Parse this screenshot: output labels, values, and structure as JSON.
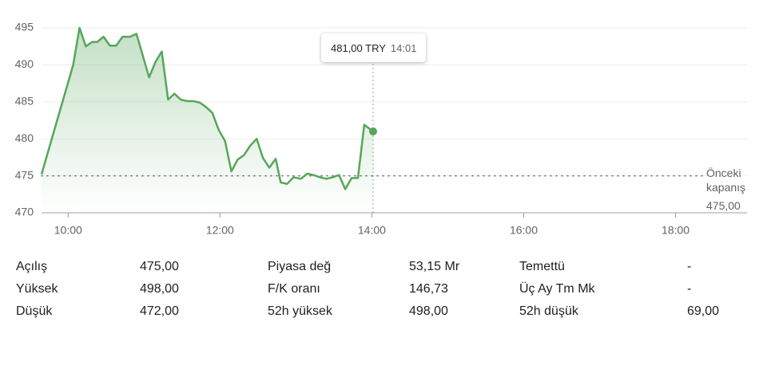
{
  "chart_data": {
    "type": "line",
    "x": [
      579,
      604,
      609,
      614,
      619,
      623,
      628,
      633,
      638,
      643,
      649,
      654,
      664,
      669,
      674,
      679,
      684,
      689,
      694,
      699,
      704,
      709,
      714,
      719,
      724,
      729,
      734,
      739,
      744,
      749,
      754,
      759,
      764,
      768,
      773,
      778,
      784,
      789,
      794,
      799,
      804,
      809,
      814,
      819,
      824,
      829,
      834,
      841
    ],
    "values": [
      475.2,
      490.0,
      495.0,
      492.5,
      493.1,
      493.1,
      493.8,
      492.6,
      492.6,
      493.8,
      493.8,
      494.2,
      488.3,
      490.4,
      491.8,
      485.3,
      486.1,
      485.3,
      485.1,
      485.1,
      484.9,
      484.3,
      483.5,
      481.2,
      479.7,
      475.6,
      477.2,
      477.8,
      479.1,
      480.0,
      477.4,
      476.1,
      477.3,
      474.1,
      473.9,
      474.8,
      474.6,
      475.3,
      475.1,
      474.8,
      474.6,
      474.8,
      475.1,
      473.2,
      474.7,
      474.7,
      481.9,
      481.0
    ],
    "color": "#57a65b",
    "xlim": [
      579,
      1103
    ],
    "xticks": [
      {
        "value": 600,
        "label": "10:00"
      },
      {
        "value": 720,
        "label": "12:00"
      },
      {
        "value": 840,
        "label": "14:00"
      },
      {
        "value": 960,
        "label": "16:00"
      },
      {
        "value": 1080,
        "label": "18:00"
      }
    ],
    "ylim": [
      470,
      495
    ],
    "yticks": [
      470,
      475,
      480,
      485,
      490,
      495
    ],
    "grid": true,
    "reference": {
      "value": 475,
      "label": "Önceki kapanış",
      "value_label": "475,00"
    },
    "tooltip": {
      "price": "481,00 TRY",
      "time": "14:01"
    }
  },
  "stats": [
    {
      "label": "Açılış",
      "value": "475,00"
    },
    {
      "label": "Yüksek",
      "value": "498,00"
    },
    {
      "label": "Düşük",
      "value": "472,00"
    },
    {
      "label": "Piyasa değ",
      "value": "53,15 Mr"
    },
    {
      "label": "F/K oranı",
      "value": "146,73"
    },
    {
      "label": "52h yüksek",
      "value": "498,00"
    },
    {
      "label": "Temettü",
      "value": "-"
    },
    {
      "label": "Üç Ay Tm Mk",
      "value": "-"
    },
    {
      "label": "52h düşük",
      "value": "69,00"
    }
  ]
}
